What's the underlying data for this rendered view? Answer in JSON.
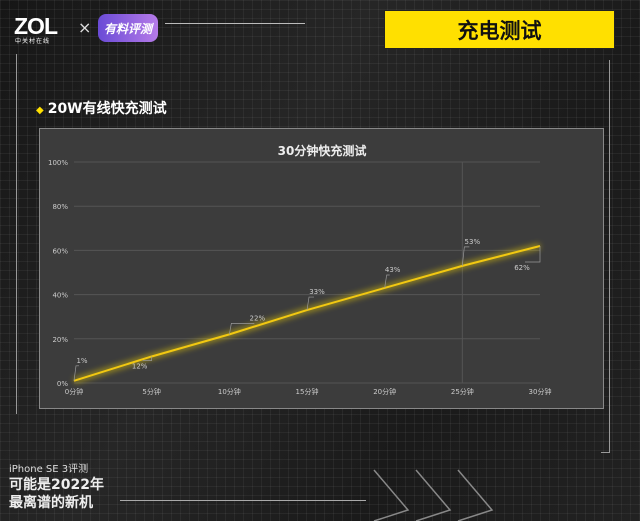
{
  "header": {
    "brand": "ZOL",
    "brand_sub": "中关村在线",
    "cross": "×",
    "partner_logo": "有料评测",
    "title": "充电测试"
  },
  "section": {
    "bullet": "◆",
    "title": "20W有线快充测试"
  },
  "footer": {
    "subtitle": "iPhone SE 3评测",
    "headline_1": "可能是2022年",
    "headline_2": "最离谱的新机"
  },
  "colors": {
    "accent": "#ffe000",
    "line": "#f2c811",
    "chart_bg": "#3c3c3c"
  },
  "chart_data": {
    "type": "line",
    "title": "30分钟快充测试",
    "categories": [
      "0分钟",
      "5分钟",
      "10分钟",
      "15分钟",
      "20分钟",
      "25分钟",
      "30分钟"
    ],
    "x": [
      0,
      5,
      10,
      15,
      20,
      25,
      30
    ],
    "series": [
      {
        "values": [
          1,
          12,
          22,
          33,
          43,
          53,
          62
        ]
      }
    ],
    "data_labels": [
      "1%",
      "12%",
      "22%",
      "33%",
      "43%",
      "53%",
      "62%"
    ],
    "yticks": [
      "0%",
      "20%",
      "40%",
      "60%",
      "80%",
      "100%"
    ],
    "ylim": [
      0,
      100
    ],
    "grid": "horizontal",
    "xlabel": "",
    "ylabel": ""
  }
}
